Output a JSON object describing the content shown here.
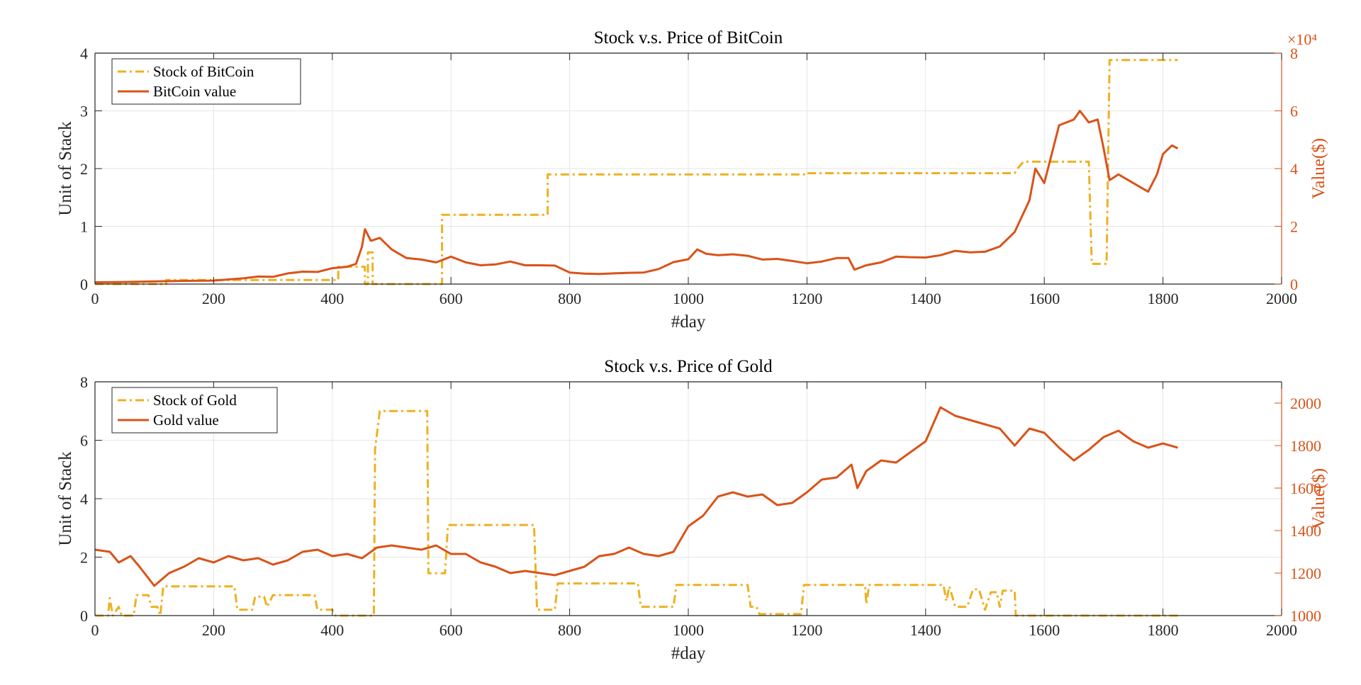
{
  "chart_data": [
    {
      "type": "line",
      "title": "Stock v.s. Price of BitCoin",
      "xlabel": "#day",
      "ylabel": "Unit of Stack",
      "y2label": "Value($)",
      "y2_multiplier": "×10⁴",
      "xlim": [
        0,
        2000
      ],
      "xticks": [
        0,
        200,
        400,
        600,
        800,
        1000,
        1200,
        1400,
        1600,
        1800,
        2000
      ],
      "ylim": [
        0,
        4
      ],
      "yticks": [
        0,
        1,
        2,
        3,
        4
      ],
      "y2lim": [
        0,
        80000
      ],
      "y2ticks": [
        {
          "value": 0,
          "label": "0"
        },
        {
          "value": 20000,
          "label": "2"
        },
        {
          "value": 40000,
          "label": "4"
        },
        {
          "value": 60000,
          "label": "6"
        },
        {
          "value": 80000,
          "label": "8"
        }
      ],
      "grid": true,
      "legend": "upper left",
      "series": [
        {
          "name": "Stock of BitCoin",
          "color": "#EDB120",
          "style": "dash-dot",
          "axis": "y",
          "x": [
            0,
            120,
            120,
            410,
            410,
            455,
            455,
            460,
            460,
            468,
            468,
            585,
            585,
            763,
            763,
            1200,
            1200,
            1550,
            1555,
            1565,
            1675,
            1680,
            1705,
            1710,
            1825
          ],
          "values": [
            0,
            0,
            0.07,
            0.07,
            0.3,
            0.3,
            0,
            0,
            0.55,
            0.55,
            0,
            0,
            1.2,
            1.2,
            1.9,
            1.9,
            1.92,
            1.92,
            2.0,
            2.12,
            2.12,
            0.35,
            0.35,
            3.88,
            3.88
          ]
        },
        {
          "name": "BitCoin value",
          "color": "#D95319",
          "style": "solid",
          "axis": "y2",
          "x": [
            0,
            50,
            100,
            150,
            200,
            250,
            275,
            300,
            325,
            350,
            375,
            400,
            425,
            440,
            450,
            455,
            465,
            480,
            500,
            525,
            550,
            575,
            600,
            625,
            650,
            675,
            700,
            725,
            750,
            775,
            800,
            825,
            850,
            875,
            900,
            925,
            950,
            975,
            1000,
            1015,
            1030,
            1050,
            1075,
            1100,
            1125,
            1150,
            1175,
            1200,
            1225,
            1250,
            1270,
            1280,
            1300,
            1325,
            1350,
            1375,
            1400,
            1425,
            1450,
            1475,
            1500,
            1525,
            1550,
            1575,
            1585,
            1600,
            1625,
            1650,
            1660,
            1675,
            1690,
            1700,
            1710,
            1725,
            1750,
            1775,
            1790,
            1800,
            1815,
            1825
          ],
          "values": [
            620,
            700,
            900,
            1100,
            1200,
            2000,
            2600,
            2500,
            3700,
            4300,
            4200,
            5500,
            6000,
            7000,
            13000,
            19000,
            15000,
            16000,
            12000,
            9000,
            8500,
            7500,
            9500,
            7500,
            6500,
            6800,
            7800,
            6500,
            6500,
            6400,
            4000,
            3600,
            3500,
            3700,
            3900,
            4000,
            5200,
            7600,
            8600,
            12000,
            10500,
            10000,
            10300,
            9800,
            8500,
            8700,
            8000,
            7200,
            7800,
            9000,
            9000,
            5000,
            6500,
            7500,
            9500,
            9300,
            9200,
            10000,
            11500,
            11000,
            11200,
            13000,
            18000,
            29000,
            40000,
            35000,
            55000,
            57000,
            60000,
            56000,
            57000,
            47000,
            36000,
            38000,
            35000,
            32000,
            38000,
            45000,
            48000,
            47000
          ]
        }
      ]
    },
    {
      "type": "line",
      "title": "Stock v.s. Price of Gold",
      "xlabel": "#day",
      "ylabel": "Unit of Stack",
      "y2label": "Value($)",
      "xlim": [
        0,
        2000
      ],
      "xticks": [
        0,
        200,
        400,
        600,
        800,
        1000,
        1200,
        1400,
        1600,
        1800,
        2000
      ],
      "ylim": [
        0,
        8
      ],
      "yticks": [
        0,
        2,
        4,
        6,
        8
      ],
      "y2lim": [
        1000,
        2100
      ],
      "y2ticks": [
        1000,
        1200,
        1400,
        1600,
        1800,
        2000
      ],
      "grid": true,
      "legend": "upper left",
      "series": [
        {
          "name": "Stock of Gold",
          "color": "#EDB120",
          "style": "dash-dot",
          "axis": "y",
          "x": [
            0,
            22,
            25,
            30,
            40,
            45,
            65,
            70,
            90,
            95,
            105,
            110,
            115,
            235,
            240,
            265,
            270,
            285,
            290,
            300,
            370,
            375,
            400,
            405,
            470,
            472,
            480,
            560,
            562,
            590,
            595,
            740,
            745,
            775,
            780,
            915,
            920,
            975,
            980,
            1100,
            1105,
            1115,
            1120,
            1190,
            1195,
            1298,
            1300,
            1305,
            1430,
            1435,
            1440,
            1450,
            1470,
            1480,
            1490,
            1500,
            1510,
            1520,
            1525,
            1530,
            1550,
            1552,
            1825
          ],
          "values": [
            0,
            0,
            0.6,
            0,
            0.3,
            0,
            0,
            0.7,
            0.7,
            0.3,
            0.3,
            0,
            1.0,
            1.0,
            0.2,
            0.2,
            0.65,
            0.65,
            0.3,
            0.7,
            0.7,
            0.2,
            0.2,
            0,
            0,
            5.7,
            7.0,
            7.0,
            1.45,
            1.45,
            3.1,
            3.1,
            0.2,
            0.2,
            1.1,
            1.1,
            0.3,
            0.3,
            1.05,
            1.05,
            0.3,
            0.3,
            0.05,
            0.05,
            1.05,
            1.05,
            0.4,
            1.05,
            1.05,
            0.5,
            1.0,
            0.3,
            0.3,
            0.9,
            0.9,
            0.2,
            0.8,
            0.8,
            0.3,
            0.85,
            0.85,
            0,
            0
          ]
        },
        {
          "name": "Gold value",
          "color": "#D95319",
          "style": "solid",
          "axis": "y2",
          "x": [
            0,
            25,
            40,
            60,
            75,
            100,
            125,
            150,
            175,
            200,
            225,
            250,
            275,
            300,
            325,
            350,
            375,
            400,
            425,
            450,
            475,
            500,
            525,
            550,
            575,
            600,
            625,
            650,
            675,
            700,
            725,
            750,
            775,
            800,
            825,
            850,
            875,
            900,
            925,
            950,
            975,
            1000,
            1025,
            1050,
            1075,
            1100,
            1125,
            1150,
            1175,
            1200,
            1225,
            1250,
            1275,
            1285,
            1300,
            1325,
            1350,
            1375,
            1400,
            1425,
            1450,
            1475,
            1500,
            1525,
            1550,
            1575,
            1600,
            1625,
            1650,
            1675,
            1700,
            1725,
            1750,
            1775,
            1800,
            1825
          ],
          "values": [
            1310,
            1300,
            1250,
            1280,
            1230,
            1140,
            1200,
            1230,
            1270,
            1250,
            1280,
            1260,
            1270,
            1240,
            1260,
            1300,
            1310,
            1280,
            1290,
            1270,
            1320,
            1330,
            1320,
            1310,
            1330,
            1290,
            1290,
            1250,
            1230,
            1200,
            1210,
            1200,
            1190,
            1210,
            1230,
            1280,
            1290,
            1320,
            1290,
            1280,
            1300,
            1420,
            1470,
            1560,
            1580,
            1560,
            1570,
            1520,
            1530,
            1580,
            1640,
            1650,
            1710,
            1600,
            1680,
            1730,
            1720,
            1770,
            1820,
            1980,
            1940,
            1920,
            1900,
            1880,
            1800,
            1880,
            1860,
            1790,
            1730,
            1780,
            1840,
            1870,
            1820,
            1790,
            1810,
            1790
          ]
        }
      ]
    }
  ]
}
